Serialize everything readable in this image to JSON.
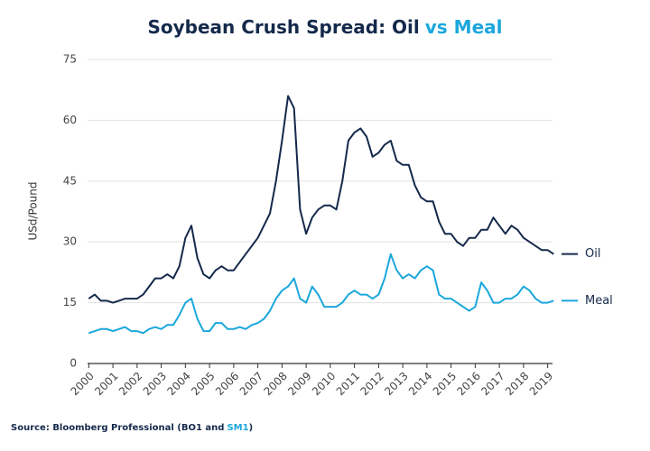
{
  "chart_data": {
    "type": "line",
    "title_parts": [
      {
        "text": "Soybean Crush Spread: Oil",
        "color": "#14294b"
      },
      {
        "text": "vs Meal",
        "color": "#1ba7dc"
      }
    ],
    "y_label": "USd/Pound",
    "source_parts": [
      {
        "text": "Source: Bloomberg Professional (BO1 and",
        "color": "#14294b"
      },
      {
        "text": "SM1",
        "color": "#1ba7dc"
      },
      {
        "text": ")",
        "color": "#14294b"
      }
    ],
    "x": [
      2000,
      2000.25,
      2000.5,
      2000.75,
      2001,
      2001.25,
      2001.5,
      2001.75,
      2002,
      2002.25,
      2002.5,
      2002.75,
      2003,
      2003.25,
      2003.5,
      2003.75,
      2004,
      2004.25,
      2004.5,
      2004.75,
      2005,
      2005.25,
      2005.5,
      2005.75,
      2006,
      2006.25,
      2006.5,
      2006.75,
      2007,
      2007.25,
      2007.5,
      2007.75,
      2008,
      2008.25,
      2008.5,
      2008.75,
      2009,
      2009.25,
      2009.5,
      2009.75,
      2010,
      2010.25,
      2010.5,
      2010.75,
      2011,
      2011.25,
      2011.5,
      2011.75,
      2012,
      2012.25,
      2012.5,
      2012.75,
      2013,
      2013.25,
      2013.5,
      2013.75,
      2014,
      2014.25,
      2014.5,
      2014.75,
      2015,
      2015.25,
      2015.5,
      2015.75,
      2016,
      2016.25,
      2016.5,
      2016.75,
      2017,
      2017.25,
      2017.5,
      2017.75,
      2018,
      2018.25,
      2018.5,
      2018.75,
      2019,
      2019.25
    ],
    "series": [
      {
        "name": "Oil",
        "color": "#14294b",
        "values": [
          16,
          17,
          15.5,
          15.5,
          15,
          15.5,
          16,
          16,
          16,
          17,
          19,
          21,
          21,
          22,
          21,
          24,
          31,
          34,
          26,
          22,
          21,
          23,
          24,
          23,
          23,
          25,
          27,
          29,
          31,
          34,
          37,
          45,
          55,
          66,
          63,
          38,
          32,
          36,
          38,
          39,
          39,
          38,
          45,
          55,
          57,
          58,
          56,
          51,
          52,
          54,
          55,
          50,
          49,
          49,
          44,
          41,
          40,
          40,
          35,
          32,
          32,
          30,
          29,
          31,
          31,
          33,
          33,
          36,
          34,
          32,
          34,
          33,
          31,
          30,
          29,
          28,
          28,
          27
        ]
      },
      {
        "name": "Meal",
        "color": "#1ba7dc",
        "values": [
          7.5,
          8,
          8.5,
          8.5,
          8,
          8.5,
          9,
          8,
          8,
          7.5,
          8.5,
          9,
          8.5,
          9.5,
          9.5,
          12,
          15,
          16,
          11,
          8,
          8,
          10,
          10,
          8.5,
          8.5,
          9,
          8.5,
          9.5,
          10,
          11,
          13,
          16,
          18,
          19,
          21,
          16,
          15,
          19,
          17,
          14,
          14,
          14,
          15,
          17,
          18,
          17,
          17,
          16,
          17,
          21,
          27,
          23,
          21,
          22,
          21,
          23,
          24,
          23,
          17,
          16,
          16,
          15,
          14,
          13,
          14,
          20,
          18,
          15,
          15,
          16,
          16,
          17,
          19,
          18,
          16,
          15,
          15,
          15.5
        ]
      }
    ],
    "xlim": [
      1999.95,
      2019.2
    ],
    "xticks": [
      2000,
      2001,
      2002,
      2003,
      2004,
      2005,
      2006,
      2007,
      2008,
      2009,
      2010,
      2011,
      2012,
      2013,
      2014,
      2015,
      2016,
      2017,
      2018,
      2019
    ],
    "ylim": [
      0,
      75
    ],
    "yticks": [
      0,
      15,
      30,
      45,
      60,
      75
    ],
    "grid": true
  }
}
